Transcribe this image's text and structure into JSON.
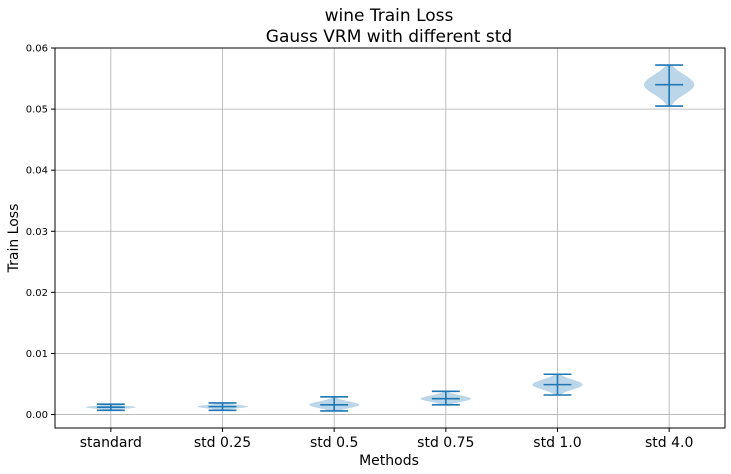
{
  "chart_data": {
    "type": "violin",
    "title": [
      "wine Train Loss",
      "Gauss VRM with different std"
    ],
    "xlabel": "Methods",
    "ylabel": "Train Loss",
    "ylim": [
      -0.0022,
      0.06
    ],
    "yticks": [
      0.0,
      0.01,
      0.02,
      0.03,
      0.04,
      0.05,
      0.06
    ],
    "ytick_labels": [
      "0.00",
      "0.01",
      "0.02",
      "0.03",
      "0.04",
      "0.05",
      "0.06"
    ],
    "grid": true,
    "color": "#1f77b4",
    "categories": [
      "standard",
      "std 0.25",
      "std 0.5",
      "std 0.75",
      "std 1.0",
      "std 4.0"
    ],
    "violins": [
      {
        "min": 0.0007,
        "mean": 0.0012,
        "max": 0.0017,
        "width": 0.45
      },
      {
        "min": 0.0007,
        "mean": 0.0013,
        "max": 0.0019,
        "width": 0.45
      },
      {
        "min": 0.0006,
        "mean": 0.0016,
        "max": 0.0029,
        "width": 0.45
      },
      {
        "min": 0.0016,
        "mean": 0.0026,
        "max": 0.0038,
        "width": 0.45
      },
      {
        "min": 0.0032,
        "mean": 0.0049,
        "max": 0.0066,
        "width": 0.45
      },
      {
        "min": 0.0505,
        "mean": 0.054,
        "max": 0.0572,
        "width": 0.45
      }
    ]
  }
}
